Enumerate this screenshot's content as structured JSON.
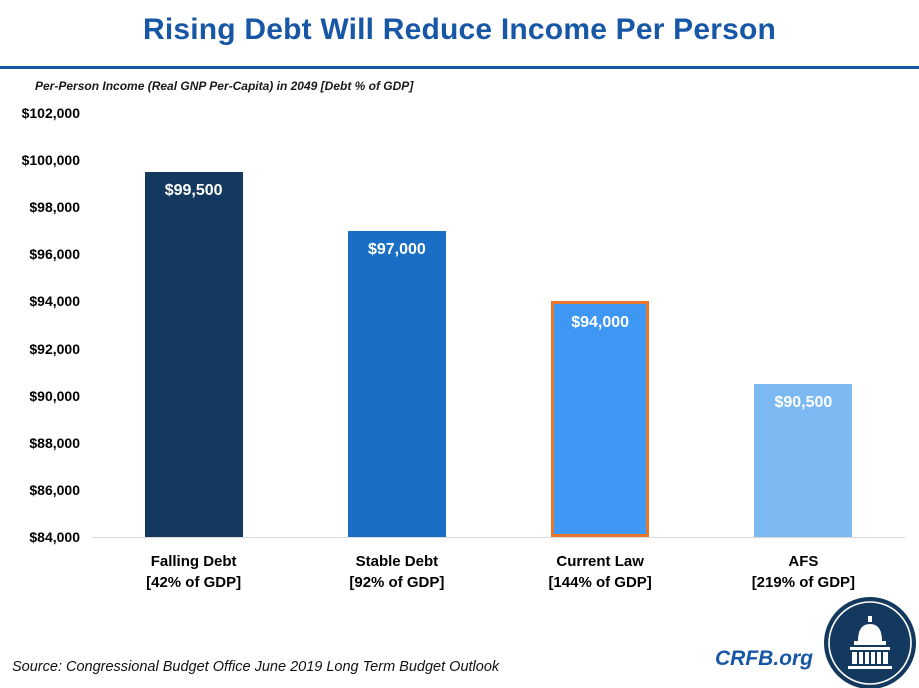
{
  "colors": {
    "accent": "#1757A6",
    "highlight_orange": "#E8762C",
    "text": "#1a1a1a"
  },
  "chart_data": {
    "type": "bar",
    "title": "Rising Debt Will Reduce Income Per Person",
    "subtitle": "Per-Person Income (Real GNP Per-Capita) in 2049 [Debt % of GDP]",
    "categories": [
      "Falling Debt",
      "Stable Debt",
      "Current Law",
      "AFS"
    ],
    "category_sublabels": [
      "[42% of GDP]",
      "[92% of GDP]",
      "[144% of GDP]",
      "[219% of GDP]"
    ],
    "values": [
      99500,
      97000,
      94000,
      90500
    ],
    "value_labels": [
      "$99,500",
      "$97,000",
      "$94,000",
      "$90,500"
    ],
    "bar_colors": [
      "#14395E",
      "#1A6FC4",
      "#3E97F3",
      "#7CB9F2"
    ],
    "highlight_border": {
      "index": 2,
      "color": "#E8762C"
    },
    "ylim": [
      84000,
      102000
    ],
    "ytick_step": 2000,
    "ytick_labels": [
      "$102,000",
      "$100,000",
      "$98,000",
      "$96,000",
      "$94,000",
      "$92,000",
      "$90,000",
      "$88,000",
      "$86,000",
      "$84,000"
    ],
    "grid": false,
    "legend": false,
    "xlabel": "",
    "ylabel": ""
  },
  "footer": {
    "source": "Source: Congressional Budget Office June 2019 Long Term Budget Outlook",
    "brand": "CRFB.org",
    "logo_icon": "capitol-dome-icon"
  }
}
